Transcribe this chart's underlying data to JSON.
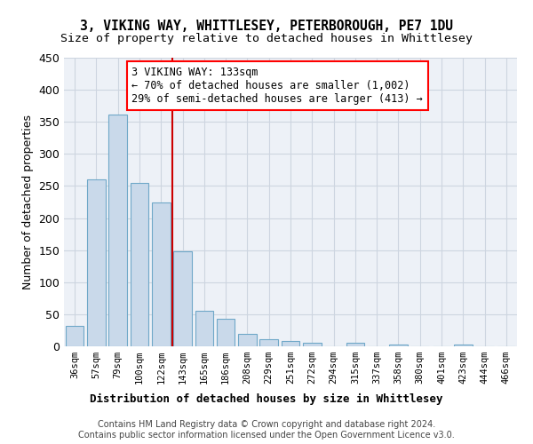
{
  "title_line1": "3, VIKING WAY, WHITTLESEY, PETERBOROUGH, PE7 1DU",
  "title_line2": "Size of property relative to detached houses in Whittlesey",
  "xlabel": "Distribution of detached houses by size in Whittlesey",
  "ylabel": "Number of detached properties",
  "bar_labels": [
    "36sqm",
    "57sqm",
    "79sqm",
    "100sqm",
    "122sqm",
    "143sqm",
    "165sqm",
    "186sqm",
    "208sqm",
    "229sqm",
    "251sqm",
    "272sqm",
    "294sqm",
    "315sqm",
    "337sqm",
    "358sqm",
    "380sqm",
    "401sqm",
    "423sqm",
    "444sqm",
    "466sqm"
  ],
  "bar_values": [
    32,
    260,
    362,
    255,
    225,
    148,
    55,
    43,
    19,
    11,
    9,
    5,
    0,
    6,
    0,
    3,
    0,
    0,
    3,
    0,
    0
  ],
  "bar_color": "#c9d9ea",
  "bar_edge_color": "#6fa8c8",
  "annotation_line1": "3 VIKING WAY: 133sqm",
  "annotation_line2": "← 70% of detached houses are smaller (1,002)",
  "annotation_line3": "29% of semi-detached houses are larger (413) →",
  "vline_color": "#cc0000",
  "ylim": [
    0,
    450
  ],
  "yticks": [
    0,
    50,
    100,
    150,
    200,
    250,
    300,
    350,
    400,
    450
  ],
  "grid_color": "#cdd5e0",
  "background_color": "#edf1f7",
  "footer_text": "Contains HM Land Registry data © Crown copyright and database right 2024.\nContains public sector information licensed under the Open Government Licence v3.0.",
  "title_fontsize": 10.5,
  "subtitle_fontsize": 9.5,
  "bar_width": 0.85,
  "annot_fontsize": 8.5
}
